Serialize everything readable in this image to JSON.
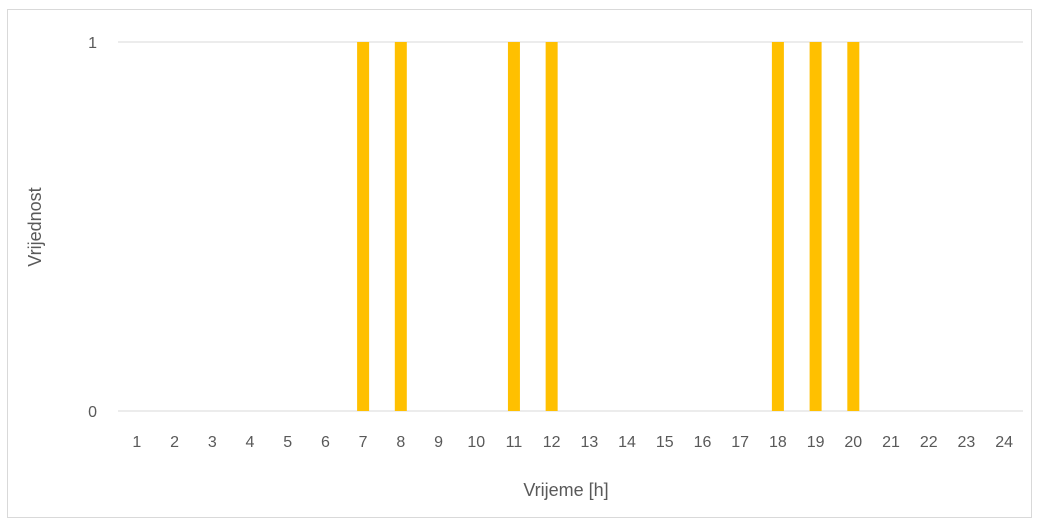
{
  "chart_data": {
    "type": "bar",
    "title": "",
    "xlabel": "Vrijeme [h]",
    "ylabel": "Vrijednost",
    "categories": [
      "1",
      "2",
      "3",
      "4",
      "5",
      "6",
      "7",
      "8",
      "9",
      "10",
      "11",
      "12",
      "13",
      "14",
      "15",
      "16",
      "17",
      "18",
      "19",
      "20",
      "21",
      "22",
      "23",
      "24"
    ],
    "values": [
      0,
      0,
      0,
      0,
      0,
      0,
      1,
      1,
      0,
      0,
      1,
      1,
      0,
      0,
      0,
      0,
      0,
      1,
      1,
      1,
      0,
      0,
      0,
      0
    ],
    "ylim": [
      0,
      1
    ],
    "yticks": [
      "0",
      "1"
    ],
    "grid": true,
    "legend": "none",
    "bar_color": "#FFC000",
    "gridline_color": "#d9d9d9"
  }
}
